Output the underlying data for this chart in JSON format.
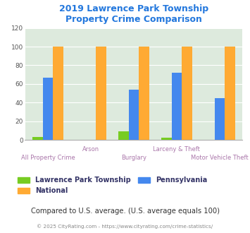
{
  "title": "2019 Lawrence Park Township\nProperty Crime Comparison",
  "categories": [
    "All Property Crime",
    "Arson",
    "Burglary",
    "Larceny & Theft",
    "Motor Vehicle Theft"
  ],
  "series": {
    "Lawrence Park Township": [
      3,
      0,
      9,
      2,
      0
    ],
    "Pennsylvania": [
      67,
      0,
      54,
      72,
      45
    ],
    "National": [
      100,
      100,
      100,
      100,
      100
    ]
  },
  "colors": {
    "Lawrence Park Township": "#77cc22",
    "Pennsylvania": "#4488ee",
    "National": "#ffaa33"
  },
  "ylim": [
    0,
    120
  ],
  "yticks": [
    0,
    20,
    40,
    60,
    80,
    100,
    120
  ],
  "title_color": "#2277dd",
  "category_color": "#aa77aa",
  "plot_bg": "#ddeadd",
  "footer_text": "Compared to U.S. average. (U.S. average equals 100)",
  "footer_color": "#333333",
  "copyright_text": "© 2025 CityRating.com - https://www.cityrating.com/crime-statistics/",
  "copyright_color": "#888888",
  "legend_text_color": "#333366"
}
